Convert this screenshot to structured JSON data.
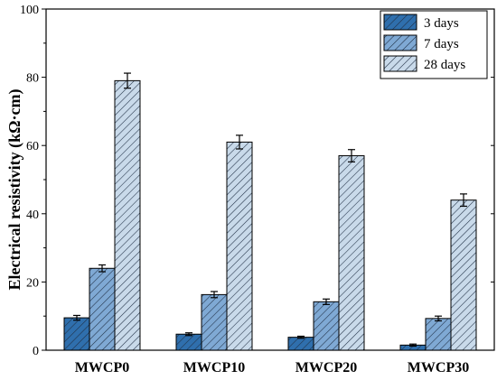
{
  "chart_data": {
    "type": "bar",
    "categories": [
      "MWCP0",
      "MWCP10",
      "MWCP20",
      "MWCP30"
    ],
    "series": [
      {
        "name": "3 days",
        "values": [
          9.5,
          4.7,
          3.8,
          1.5
        ],
        "errors": [
          0.7,
          0.4,
          0.3,
          0.3
        ],
        "color": "#2f6fad"
      },
      {
        "name": "7 days",
        "values": [
          24,
          16.3,
          14.2,
          9.3
        ],
        "errors": [
          1.0,
          0.9,
          0.8,
          0.7
        ],
        "color": "#7fa9d4"
      },
      {
        "name": "28 days",
        "values": [
          79,
          61,
          57,
          44
        ],
        "errors": [
          2.2,
          2.0,
          1.8,
          1.8
        ],
        "color": "#c9daea"
      }
    ],
    "ylabel": "Electrical resistivity  (kΩ·cm)",
    "xlabel": "",
    "ylim": [
      0,
      100
    ],
    "yticks": [
      0,
      20,
      40,
      60,
      80,
      100
    ],
    "legend_position": "top-right",
    "grid": false,
    "pattern": "diagonal-hatch"
  }
}
